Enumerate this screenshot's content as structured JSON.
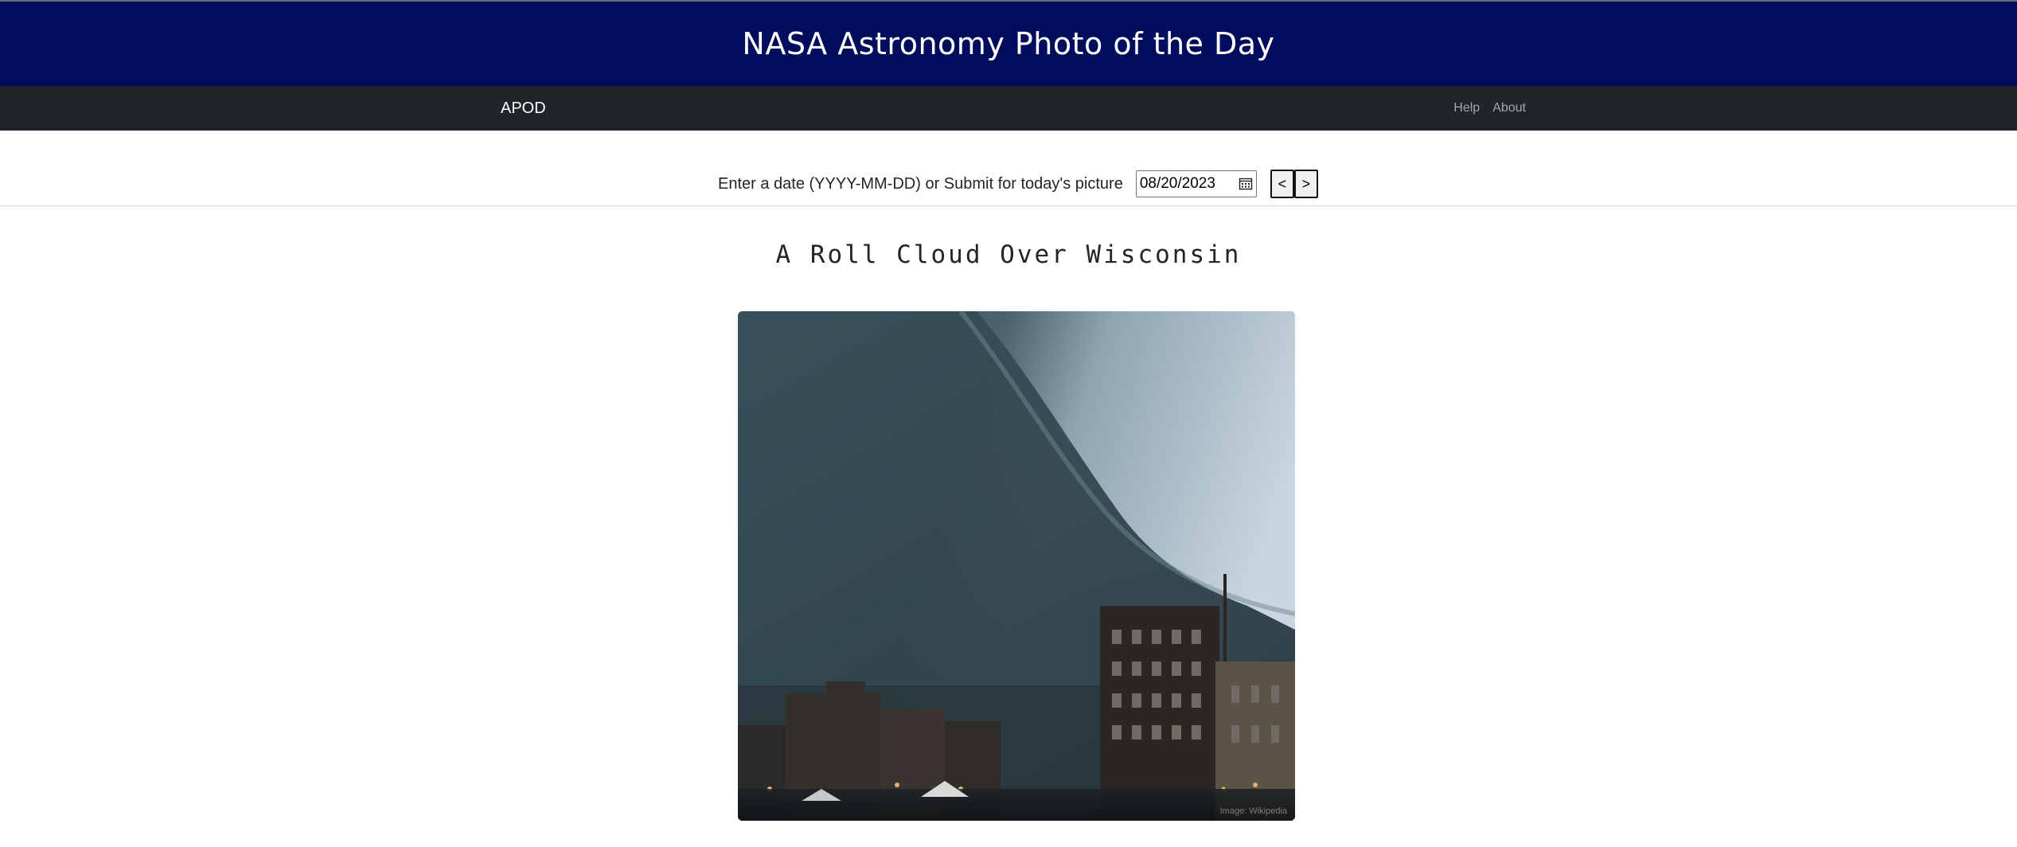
{
  "header": {
    "title": "NASA Astronomy Photo of the Day"
  },
  "navbar": {
    "brand": "APOD",
    "links": [
      {
        "label": "Help"
      },
      {
        "label": "About"
      }
    ]
  },
  "date_picker": {
    "label": "Enter a date (YYYY-MM-DD) or Submit for today's picture",
    "value": "08/20/2023",
    "prev_label": "<",
    "next_label": ">"
  },
  "apod": {
    "title": "A Roll Cloud Over Wisconsin",
    "image_credit": "Image: Wikipedia"
  },
  "icons": {
    "calendar": "calendar-icon"
  },
  "colors": {
    "header_bg": "#000d5c",
    "navbar_bg": "#212529",
    "nav_link": "#a3a7ab"
  }
}
